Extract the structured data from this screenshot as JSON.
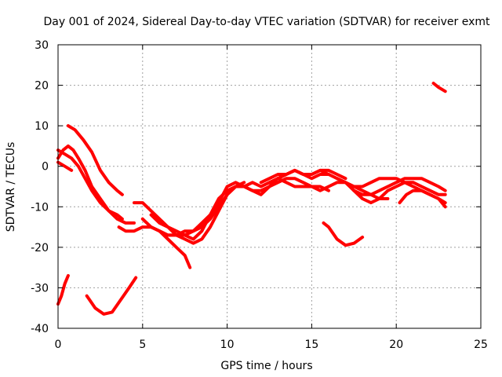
{
  "chart_data": {
    "type": "line",
    "title": "Day 001 of 2024, Sidereal Day-to-day VTEC variation (SDTVAR) for receiver exmt",
    "xlabel": "GPS time / hours",
    "ylabel": "SDTVAR / TECUs",
    "xlim": [
      0,
      25
    ],
    "ylim": [
      -40,
      30
    ],
    "xticks": [
      0,
      5,
      10,
      15,
      20,
      25
    ],
    "yticks": [
      -40,
      -30,
      -20,
      -10,
      0,
      10,
      20,
      30
    ],
    "xtick_labels": [
      "0",
      "5",
      "10",
      "15",
      "20",
      "25"
    ],
    "ytick_labels": [
      "-40",
      "-30",
      "-20",
      "-10",
      "0",
      "10",
      "20",
      "30"
    ],
    "grid": true,
    "color": "#ff0000",
    "series": [
      {
        "name": "track-1",
        "x": [
          0.6,
          1.0,
          1.5,
          2.0,
          2.5,
          3.0,
          3.5,
          3.8
        ],
        "y": [
          10,
          9,
          6.5,
          3.5,
          -1,
          -4,
          -6,
          -7
        ]
      },
      {
        "name": "track-2",
        "x": [
          0.0,
          0.3,
          0.6,
          0.9,
          1.2,
          1.6,
          2.0,
          2.5,
          3.0,
          3.5,
          4.0,
          4.5
        ],
        "y": [
          2,
          4,
          5,
          4,
          2,
          -1,
          -5,
          -8,
          -11,
          -13,
          -14,
          -14
        ]
      },
      {
        "name": "track-3",
        "x": [
          0.0,
          0.4,
          0.8,
          1.2,
          1.6,
          2.0,
          2.5,
          3.0,
          3.5,
          3.8
        ],
        "y": [
          4,
          3,
          2,
          0,
          -3,
          -6,
          -9,
          -11,
          -12,
          -13
        ]
      },
      {
        "name": "track-4",
        "x": [
          0.0,
          0.4,
          0.8
        ],
        "y": [
          1,
          0,
          -1
        ]
      },
      {
        "name": "track-5",
        "x": [
          0.0,
          0.2,
          0.4,
          0.6
        ],
        "y": [
          -34,
          -32,
          -29,
          -27
        ]
      },
      {
        "name": "track-6",
        "x": [
          1.7,
          2.2,
          2.7,
          3.2,
          3.7,
          4.2,
          4.6
        ],
        "y": [
          -32,
          -35,
          -36.5,
          -36,
          -33,
          -30,
          -27.5
        ]
      },
      {
        "name": "track-7",
        "x": [
          3.6,
          4.0,
          4.5,
          5.0,
          5.5,
          6.0,
          6.5,
          7.0,
          7.5,
          8.0,
          8.5,
          9.0,
          9.5,
          10.0,
          10.5,
          11.0,
          11.5,
          12.0,
          12.5,
          13.0,
          13.5,
          14.0,
          14.5,
          15.0,
          15.5,
          16.0
        ],
        "y": [
          -15,
          -16,
          -16,
          -15,
          -15,
          -16,
          -17,
          -17,
          -16,
          -16,
          -14,
          -12,
          -9,
          -5,
          -4,
          -5,
          -6,
          -7,
          -5,
          -3,
          -2,
          -1,
          -2,
          -3,
          -2,
          -2
        ]
      },
      {
        "name": "track-8",
        "x": [
          4.5,
          5.0,
          5.5,
          6.0,
          6.5,
          7.0,
          7.5,
          8.0,
          8.5,
          9.0,
          9.5,
          10.0,
          10.5,
          11.0,
          11.5,
          12.0,
          12.5,
          13.0,
          13.5,
          14.0,
          14.5,
          15.0,
          15.5,
          16.0
        ],
        "y": [
          -9,
          -9,
          -11,
          -13,
          -15,
          -16,
          -17,
          -18,
          -16,
          -12,
          -8,
          -6,
          -5,
          -5,
          -6,
          -6,
          -5,
          -4,
          -3,
          -3,
          -4,
          -5,
          -5,
          -6
        ]
      },
      {
        "name": "track-9",
        "x": [
          5.0,
          5.5,
          6.0,
          6.5,
          7.0,
          7.5,
          7.8
        ],
        "y": [
          -13,
          -15,
          -16,
          -18,
          -20,
          -22,
          -25
        ]
      },
      {
        "name": "track-10",
        "x": [
          5.5,
          6.0,
          6.5,
          7.0,
          7.5,
          8.0,
          8.5,
          9.0,
          9.5,
          10.0,
          10.5,
          11.0,
          11.5,
          12.0,
          12.5,
          13.0,
          13.5,
          14.0,
          14.5,
          15.0,
          15.5,
          16.0,
          16.5,
          17.0
        ],
        "y": [
          -12,
          -14,
          -15,
          -17,
          -18,
          -19,
          -18,
          -15,
          -11,
          -7,
          -5,
          -5,
          -4,
          -5,
          -4,
          -3,
          -2,
          -1,
          -2,
          -2,
          -1,
          -1,
          -2,
          -3
        ]
      },
      {
        "name": "track-11",
        "x": [
          6.0,
          6.5,
          7.0,
          7.5,
          8.0,
          8.5,
          9.0,
          9.5,
          10.0,
          10.5,
          11.0
        ],
        "y": [
          -16,
          -17,
          -17,
          -17,
          -16,
          -15,
          -13,
          -10,
          -7,
          -5,
          -4
        ]
      },
      {
        "name": "track-12",
        "x": [
          12.0,
          12.5,
          13.0,
          13.5,
          14.0,
          14.5,
          15.0,
          15.5,
          16.0,
          16.5,
          17.0,
          17.5,
          18.0,
          18.5,
          19.0,
          19.5,
          20.0,
          20.5,
          21.0,
          21.5,
          22.0,
          22.5,
          22.9
        ],
        "y": [
          -4,
          -3,
          -2,
          -2,
          -1,
          -2,
          -2,
          -1,
          -2,
          -3,
          -4,
          -5,
          -5,
          -4,
          -3,
          -3,
          -3,
          -4,
          -5,
          -6,
          -7,
          -8,
          -9
        ]
      },
      {
        "name": "track-13",
        "x": [
          13.0,
          13.5,
          14.0,
          14.5,
          15.0,
          15.5,
          16.0,
          16.5,
          17.0,
          17.5,
          18.0,
          18.5,
          19.0,
          19.5,
          20.0,
          20.5,
          21.0,
          21.5,
          22.0,
          22.5,
          22.9
        ],
        "y": [
          -3,
          -4,
          -5,
          -5,
          -5,
          -6,
          -5,
          -4,
          -4,
          -6,
          -8,
          -9,
          -8,
          -6,
          -5,
          -4,
          -4,
          -5,
          -6,
          -7,
          -7
        ]
      },
      {
        "name": "track-14",
        "x": [
          16.5,
          17.0,
          17.5,
          18.0,
          18.5,
          19.0,
          19.5,
          20.0,
          20.5,
          21.0,
          21.5,
          22.0,
          22.5,
          22.9
        ],
        "y": [
          -3,
          -4,
          -5,
          -6,
          -7,
          -6,
          -5,
          -4,
          -3,
          -3,
          -3,
          -4,
          -5,
          -6
        ]
      },
      {
        "name": "track-15",
        "x": [
          17.5,
          18.0,
          18.5,
          19.0,
          19.5
        ],
        "y": [
          -6,
          -7,
          -7,
          -8,
          -8
        ]
      },
      {
        "name": "track-16",
        "x": [
          20.2,
          20.6,
          21.0,
          21.5,
          22.0,
          22.5,
          22.9
        ],
        "y": [
          -9,
          -7,
          -6,
          -6,
          -7,
          -8,
          -10
        ]
      },
      {
        "name": "track-17",
        "x": [
          15.7,
          16.0,
          16.5,
          17.0,
          17.5,
          18.0
        ],
        "y": [
          -14,
          -15,
          -18,
          -19.5,
          -19,
          -17.5
        ]
      },
      {
        "name": "track-18",
        "x": [
          22.2,
          22.5,
          22.9
        ],
        "y": [
          20.5,
          19.5,
          18.5
        ]
      }
    ]
  }
}
